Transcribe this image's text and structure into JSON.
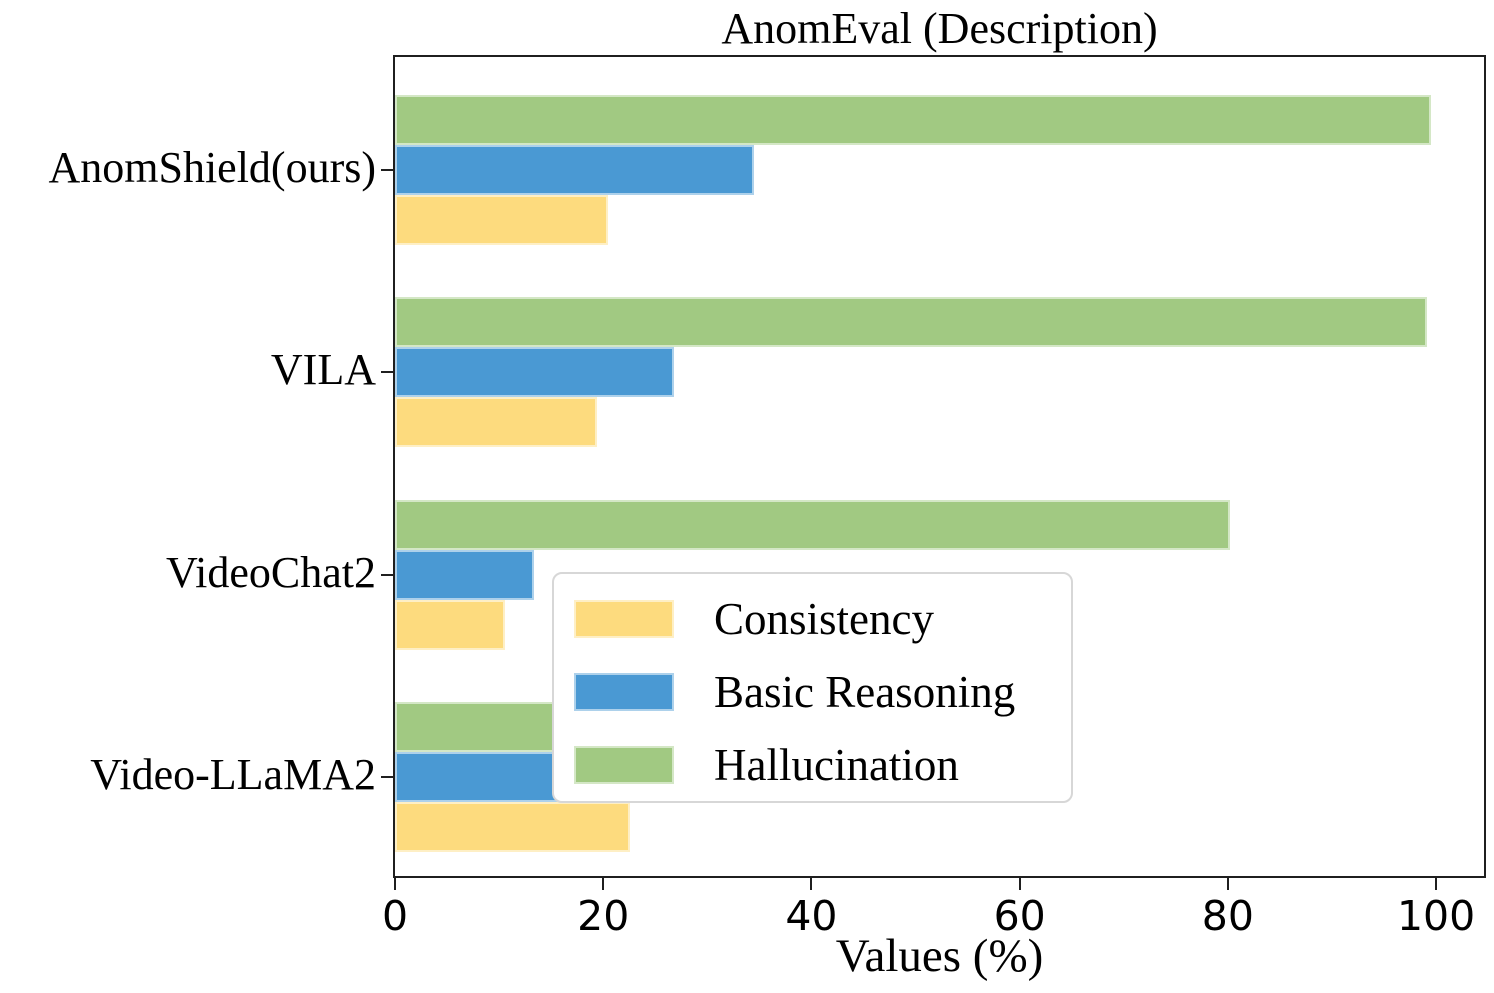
{
  "chart_data": {
    "type": "bar",
    "orientation": "horizontal",
    "title": "AnomEval (Description)",
    "xlabel": "Values (%)",
    "ylabel": "",
    "categories": [
      "AnomShield(ours)",
      "VILA",
      "VideoChat2",
      "Video-LLaMA2"
    ],
    "series": [
      {
        "name": "Consistency",
        "color": "#FDDB7E",
        "values": [
          20.5,
          19.4,
          10.6,
          22.6
        ]
      },
      {
        "name": "Basic Reasoning",
        "color": "#4A99D3",
        "values": [
          34.5,
          26.8,
          13.3,
          22.7
        ]
      },
      {
        "name": "Hallucination",
        "color": "#A1C982",
        "values": [
          99.5,
          99.1,
          80.2,
          50.4
        ]
      }
    ],
    "x_ticks": [
      0,
      20,
      40,
      60,
      80,
      100
    ],
    "xlim": [
      0,
      104.6
    ],
    "grid": false,
    "legend_position": "lower right",
    "legend_entries": [
      "Consistency",
      "Basic Reasoning",
      "Hallucination"
    ]
  }
}
